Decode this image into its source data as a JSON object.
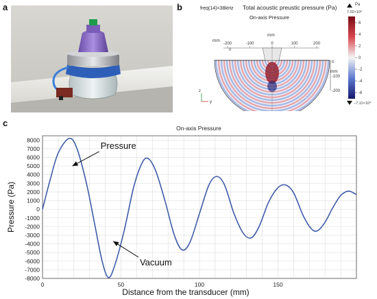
{
  "panels": {
    "a": "a",
    "b": "b",
    "c": "c"
  },
  "simulation": {
    "freq_label": "freq(14)=38kHz",
    "title": "Total acoustic preustic pressure (Pa)",
    "subtitle": "On-axis Pressure",
    "axis_unit_top": "mm",
    "axis_unit_left": "mm",
    "axis_unit_right": "mm",
    "x_ticks": [
      "-200",
      "-100",
      "0",
      "100",
      "200"
    ],
    "y_ticks_left": [
      "0"
    ],
    "y_ticks_right": [
      "0",
      "-100",
      "-200"
    ],
    "axis_z": "z",
    "axis_y": "y",
    "colorbar": {
      "unit": "Pa",
      "scale": "×10⁴",
      "max_label": "7.02×10⁴",
      "min_label": "−7.11×10⁴",
      "ticks": [
        "6",
        "4",
        "2",
        "0",
        "-2",
        "-4",
        "-6"
      ],
      "colors": {
        "high": "#8b0a1a",
        "mid": "#f2f2f2",
        "low": "#1c1f7a"
      }
    }
  },
  "chart_data": {
    "type": "line",
    "title": "On-axis Pressure",
    "xlabel": "Distance from the transducer (mm)",
    "ylabel": "Pressure (Pa)",
    "xlim": [
      0,
      200
    ],
    "ylim": [
      -8000,
      8500
    ],
    "x_ticks": [
      0,
      50,
      100,
      150
    ],
    "y_ticks": [
      8000,
      7000,
      6000,
      5000,
      4000,
      3000,
      2000,
      1000,
      0,
      -1000,
      -2000,
      -3000,
      -4000,
      -5000,
      -6000,
      -7000,
      -8000
    ],
    "grid": true,
    "line_color": "#3d5ba9",
    "series": [
      {
        "points": [
          [
            0,
            0
          ],
          [
            5,
            3500
          ],
          [
            10,
            6500
          ],
          [
            17,
            8200
          ],
          [
            22,
            7000
          ],
          [
            28,
            3000
          ],
          [
            33,
            -1500
          ],
          [
            38,
            -6000
          ],
          [
            42,
            -7900
          ],
          [
            46,
            -6500
          ],
          [
            52,
            -2500
          ],
          [
            58,
            2500
          ],
          [
            63,
            5200
          ],
          [
            67,
            5900
          ],
          [
            72,
            4500
          ],
          [
            78,
            1000
          ],
          [
            84,
            -3000
          ],
          [
            89,
            -4700
          ],
          [
            94,
            -3800
          ],
          [
            100,
            -500
          ],
          [
            106,
            2800
          ],
          [
            111,
            3800
          ],
          [
            116,
            2800
          ],
          [
            122,
            -500
          ],
          [
            128,
            -2800
          ],
          [
            133,
            -3300
          ],
          [
            138,
            -2000
          ],
          [
            144,
            800
          ],
          [
            150,
            2500
          ],
          [
            155,
            2800
          ],
          [
            160,
            1900
          ],
          [
            166,
            -700
          ],
          [
            171,
            -2200
          ],
          [
            175,
            -2500
          ],
          [
            180,
            -1500
          ],
          [
            185,
            200
          ],
          [
            190,
            1600
          ],
          [
            195,
            2100
          ],
          [
            200,
            1700
          ]
        ]
      }
    ],
    "annotations": [
      {
        "text": "Pressure",
        "x": 37,
        "y": 7000,
        "arrow_to": [
          19,
          5000
        ]
      },
      {
        "text": "Vacuum",
        "x": 62,
        "y": -6500,
        "arrow_to": [
          45,
          -3700
        ]
      }
    ]
  }
}
